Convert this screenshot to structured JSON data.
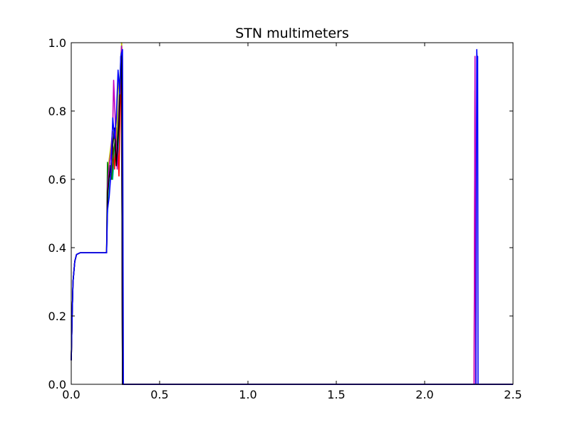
{
  "chart_data": {
    "type": "line",
    "title": "STN multimeters",
    "xlabel": "",
    "ylabel": "",
    "xlim": [
      0,
      2.5
    ],
    "ylim": [
      0,
      1.0
    ],
    "x_ticks": [
      0,
      0.5,
      1.0,
      1.5,
      2.0,
      2.5
    ],
    "x_tick_labels": [
      "0.0",
      "0.5",
      "1.0",
      "1.5",
      "2.0",
      "2.5"
    ],
    "y_ticks": [
      0,
      0.2,
      0.4,
      0.6,
      0.8,
      1.0
    ],
    "y_tick_labels": [
      "0.0",
      "0.2",
      "0.4",
      "0.6",
      "0.8",
      "1.0"
    ],
    "grid": false,
    "legend": "none",
    "series": [
      {
        "color": "#00bfbf",
        "points": [
          [
            0,
            0.07
          ],
          [
            0.005,
            0.2
          ],
          [
            0.01,
            0.3
          ],
          [
            0.02,
            0.36
          ],
          [
            0.03,
            0.38
          ],
          [
            0.05,
            0.385
          ],
          [
            0.2,
            0.385
          ],
          [
            0.205,
            0.5
          ],
          [
            0.215,
            0.58
          ],
          [
            0.225,
            0.62
          ],
          [
            0.235,
            0.6
          ],
          [
            0.245,
            0.68
          ],
          [
            0.255,
            0.73
          ],
          [
            0.265,
            0.66
          ],
          [
            0.275,
            0.78
          ],
          [
            0.28,
            0.9
          ],
          [
            0.285,
            0.99
          ],
          [
            0.29,
            0.0
          ],
          [
            2.5,
            0.0
          ]
        ]
      },
      {
        "color": "#ff0000",
        "points": [
          [
            0,
            0.07
          ],
          [
            0.005,
            0.2
          ],
          [
            0.01,
            0.3
          ],
          [
            0.02,
            0.36
          ],
          [
            0.03,
            0.38
          ],
          [
            0.05,
            0.385
          ],
          [
            0.2,
            0.385
          ],
          [
            0.205,
            0.55
          ],
          [
            0.215,
            0.62
          ],
          [
            0.225,
            0.6
          ],
          [
            0.235,
            0.7
          ],
          [
            0.245,
            0.63
          ],
          [
            0.255,
            0.75
          ],
          [
            0.265,
            0.68
          ],
          [
            0.27,
            0.61
          ],
          [
            0.28,
            0.85
          ],
          [
            0.285,
            0.98
          ],
          [
            0.29,
            0.0
          ],
          [
            2.28,
            0.0
          ],
          [
            2.285,
            0.86
          ],
          [
            2.29,
            0.0
          ],
          [
            2.5,
            0.0
          ]
        ]
      },
      {
        "color": "#bfbf00",
        "points": [
          [
            0,
            0.07
          ],
          [
            0.005,
            0.2
          ],
          [
            0.01,
            0.3
          ],
          [
            0.02,
            0.36
          ],
          [
            0.03,
            0.38
          ],
          [
            0.05,
            0.385
          ],
          [
            0.2,
            0.385
          ],
          [
            0.205,
            0.6
          ],
          [
            0.215,
            0.66
          ],
          [
            0.225,
            0.7
          ],
          [
            0.235,
            0.74
          ],
          [
            0.245,
            0.72
          ],
          [
            0.255,
            0.69
          ],
          [
            0.265,
            0.89
          ],
          [
            0.275,
            0.84
          ],
          [
            0.285,
            1.0
          ],
          [
            0.29,
            0.95
          ],
          [
            0.295,
            0.0
          ],
          [
            2.5,
            0.0
          ]
        ]
      },
      {
        "color": "#008000",
        "points": [
          [
            0,
            0.07
          ],
          [
            0.005,
            0.2
          ],
          [
            0.01,
            0.3
          ],
          [
            0.02,
            0.36
          ],
          [
            0.03,
            0.38
          ],
          [
            0.05,
            0.385
          ],
          [
            0.2,
            0.385
          ],
          [
            0.205,
            0.65
          ],
          [
            0.21,
            0.61
          ],
          [
            0.22,
            0.64
          ],
          [
            0.23,
            0.6
          ],
          [
            0.24,
            0.68
          ],
          [
            0.25,
            0.72
          ],
          [
            0.26,
            0.7
          ],
          [
            0.27,
            0.82
          ],
          [
            0.28,
            0.95
          ],
          [
            0.285,
            0.99
          ],
          [
            0.29,
            0.0
          ],
          [
            2.5,
            0.0
          ]
        ]
      },
      {
        "color": "#bf00bf",
        "points": [
          [
            0,
            0.07
          ],
          [
            0.005,
            0.2
          ],
          [
            0.01,
            0.3
          ],
          [
            0.02,
            0.36
          ],
          [
            0.03,
            0.38
          ],
          [
            0.05,
            0.385
          ],
          [
            0.2,
            0.385
          ],
          [
            0.205,
            0.58
          ],
          [
            0.215,
            0.64
          ],
          [
            0.225,
            0.68
          ],
          [
            0.235,
            0.76
          ],
          [
            0.24,
            0.89
          ],
          [
            0.25,
            0.76
          ],
          [
            0.26,
            0.63
          ],
          [
            0.27,
            0.8
          ],
          [
            0.28,
            0.93
          ],
          [
            0.285,
            0.99
          ],
          [
            0.29,
            0.0
          ],
          [
            2.28,
            0.0
          ],
          [
            2.285,
            0.96
          ],
          [
            2.29,
            0.0
          ],
          [
            2.5,
            0.0
          ]
        ]
      },
      {
        "color": "#000000",
        "points": [
          [
            0,
            0.07
          ],
          [
            0.005,
            0.2
          ],
          [
            0.01,
            0.3
          ],
          [
            0.02,
            0.36
          ],
          [
            0.03,
            0.38
          ],
          [
            0.05,
            0.385
          ],
          [
            0.2,
            0.385
          ],
          [
            0.205,
            0.56
          ],
          [
            0.215,
            0.61
          ],
          [
            0.225,
            0.64
          ],
          [
            0.235,
            0.7
          ],
          [
            0.245,
            0.75
          ],
          [
            0.255,
            0.64
          ],
          [
            0.265,
            0.72
          ],
          [
            0.27,
            0.76
          ],
          [
            0.28,
            0.92
          ],
          [
            0.285,
            0.97
          ],
          [
            0.29,
            0.0
          ],
          [
            2.5,
            0.0
          ]
        ]
      },
      {
        "color": "#0000ff",
        "points": [
          [
            0,
            0.07
          ],
          [
            0.005,
            0.2
          ],
          [
            0.01,
            0.3
          ],
          [
            0.02,
            0.36
          ],
          [
            0.03,
            0.38
          ],
          [
            0.05,
            0.385
          ],
          [
            0.2,
            0.385
          ],
          [
            0.205,
            0.51
          ],
          [
            0.215,
            0.55
          ],
          [
            0.225,
            0.62
          ],
          [
            0.235,
            0.78
          ],
          [
            0.245,
            0.72
          ],
          [
            0.255,
            0.78
          ],
          [
            0.265,
            0.92
          ],
          [
            0.275,
            0.85
          ],
          [
            0.28,
            0.96
          ],
          [
            0.29,
            0.98
          ],
          [
            0.295,
            0.0
          ],
          [
            2.29,
            0.0
          ],
          [
            2.295,
            0.98
          ],
          [
            2.298,
            0.93
          ],
          [
            2.3,
            0.96
          ],
          [
            2.302,
            0.0
          ],
          [
            2.5,
            0.0
          ]
        ]
      }
    ]
  }
}
